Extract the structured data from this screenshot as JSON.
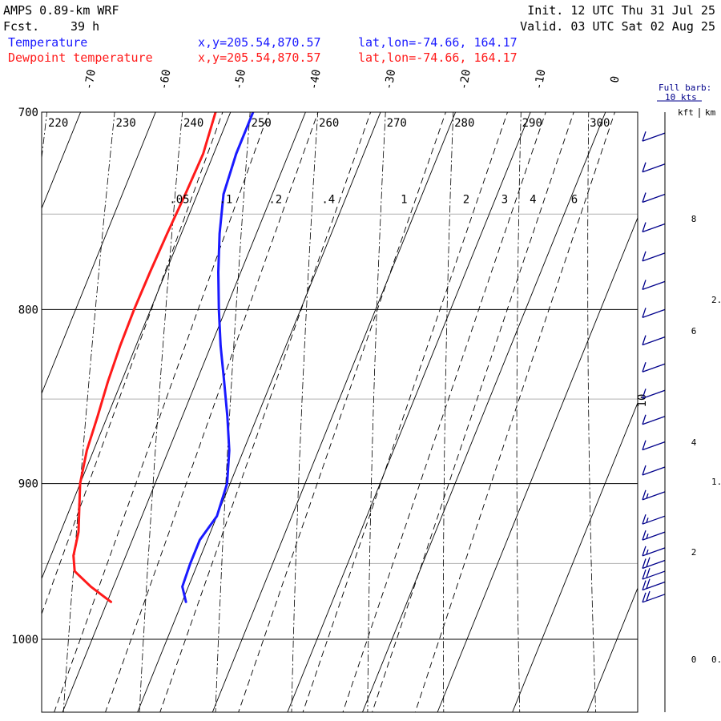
{
  "header": {
    "model": "AMPS 0.89-km WRF",
    "fcst_label": "Fcst.",
    "fcst_value": "39 h",
    "init": "Init. 12 UTC Thu 31 Jul 25",
    "valid": "Valid. 03 UTC Sat 02 Aug 25"
  },
  "legend": [
    {
      "name": "Temperature",
      "location": "x,y=205.54,870.57",
      "latlon": "lat,lon=-74.66, 164.17",
      "color": "#1a1aff"
    },
    {
      "name": "Dewpoint temperature",
      "location": "x,y=205.54,870.57",
      "latlon": "lat,lon=-74.66, 164.17",
      "color": "#ff1a1a"
    }
  ],
  "barb_legend": {
    "line1": "Full barb:",
    "line2": "10 kts"
  },
  "height_axis": {
    "kft_label": "kft",
    "km_label": "km"
  },
  "chart_data": {
    "type": "line",
    "kind": "skew-T log-P",
    "pressure_range": [
      1040,
      700
    ],
    "pressure_ticks": [
      "700",
      "800",
      "900",
      "1000"
    ],
    "temperature_ticks": [
      "-70",
      "-60",
      "-50",
      "-40",
      "-30",
      "-20",
      "-10",
      "0"
    ],
    "theta_labels": [
      "220",
      "230",
      "240",
      "250",
      "260",
      "270",
      "280",
      "290",
      "300"
    ],
    "mixing_ratio_labels": [
      ".05",
      ".1",
      ".2",
      ".4",
      "1",
      "2",
      "3",
      "4",
      "6"
    ],
    "extra_label": "10",
    "kft_ticks": [
      "8",
      "6",
      "4",
      "2",
      "0"
    ],
    "km_ticks": [
      "2.",
      "1.",
      "0."
    ],
    "series": [
      {
        "name": "Temperature",
        "color": "#1a1aff",
        "p": [
          975,
          965,
          950,
          935,
          920,
          900,
          880,
          860,
          840,
          820,
          800,
          780,
          760,
          740,
          720,
          700
        ],
        "t": [
          -29.5,
          -30.8,
          -31.0,
          -31.0,
          -30.0,
          -30.4,
          -31.9,
          -34.0,
          -36.3,
          -38.7,
          -40.9,
          -43.0,
          -44.9,
          -46.5,
          -47.0,
          -47.0
        ]
      },
      {
        "name": "Dewpoint temperature",
        "color": "#ff1a1a",
        "p": [
          975,
          965,
          955,
          945,
          930,
          900,
          880,
          860,
          840,
          820,
          800,
          780,
          760,
          740,
          720,
          700
        ],
        "t": [
          -39.5,
          -43.0,
          -46.0,
          -47.0,
          -47.6,
          -50.0,
          -50.9,
          -51.3,
          -51.8,
          -52.1,
          -52.2,
          -52.1,
          -51.9,
          -51.6,
          -51.4,
          -52.0
        ]
      }
    ],
    "wind_barbs": [
      {
        "p": 970,
        "kts": 20
      },
      {
        "p": 962,
        "kts": 20
      },
      {
        "p": 955,
        "kts": 20
      },
      {
        "p": 948,
        "kts": 20
      },
      {
        "p": 940,
        "kts": 15
      },
      {
        "p": 930,
        "kts": 15
      },
      {
        "p": 920,
        "kts": 15
      },
      {
        "p": 905,
        "kts": 15
      },
      {
        "p": 890,
        "kts": 10
      },
      {
        "p": 875,
        "kts": 10
      },
      {
        "p": 860,
        "kts": 10
      },
      {
        "p": 845,
        "kts": 10
      },
      {
        "p": 830,
        "kts": 10
      },
      {
        "p": 815,
        "kts": 10
      },
      {
        "p": 800,
        "kts": 10
      },
      {
        "p": 785,
        "kts": 10
      },
      {
        "p": 770,
        "kts": 10
      },
      {
        "p": 755,
        "kts": 10
      },
      {
        "p": 740,
        "kts": 10
      },
      {
        "p": 725,
        "kts": 10
      },
      {
        "p": 710,
        "kts": 10
      }
    ]
  }
}
